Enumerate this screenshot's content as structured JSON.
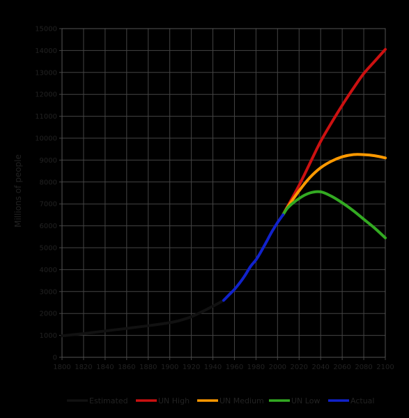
{
  "chart_data": {
    "type": "line",
    "title": "",
    "xlabel": "",
    "ylabel": "Millions of people",
    "xlim": [
      1800,
      2100
    ],
    "ylim": [
      0,
      15000
    ],
    "x_ticks": [
      1800,
      1820,
      1840,
      1860,
      1880,
      1900,
      1920,
      1940,
      1960,
      1980,
      2000,
      2020,
      2040,
      2060,
      2080,
      2100
    ],
    "y_ticks": [
      0,
      1000,
      2000,
      3000,
      4000,
      5000,
      6000,
      7000,
      8000,
      9000,
      10000,
      11000,
      12000,
      13000,
      14000,
      15000
    ],
    "grid": true,
    "legend_position": "bottom",
    "series": [
      {
        "name": "Estimated",
        "color": "#111111",
        "points": [
          [
            1800,
            980
          ],
          [
            1820,
            1080
          ],
          [
            1840,
            1200
          ],
          [
            1860,
            1320
          ],
          [
            1880,
            1440
          ],
          [
            1900,
            1580
          ],
          [
            1910,
            1690
          ],
          [
            1920,
            1850
          ],
          [
            1930,
            2080
          ],
          [
            1940,
            2330
          ],
          [
            1950,
            2600
          ]
        ]
      },
      {
        "name": "UN High",
        "color": "#cc1111",
        "points": [
          [
            2005,
            6500
          ],
          [
            2010,
            6950
          ],
          [
            2020,
            7850
          ],
          [
            2030,
            8850
          ],
          [
            2040,
            9850
          ],
          [
            2050,
            10700
          ],
          [
            2060,
            11500
          ],
          [
            2070,
            12250
          ],
          [
            2080,
            12950
          ],
          [
            2090,
            13500
          ],
          [
            2100,
            14050
          ]
        ]
      },
      {
        "name": "UN Medium",
        "color": "#ff9900",
        "points": [
          [
            2005,
            6500
          ],
          [
            2010,
            6900
          ],
          [
            2020,
            7600
          ],
          [
            2030,
            8200
          ],
          [
            2040,
            8650
          ],
          [
            2050,
            8950
          ],
          [
            2060,
            9150
          ],
          [
            2070,
            9250
          ],
          [
            2080,
            9250
          ],
          [
            2090,
            9200
          ],
          [
            2100,
            9100
          ]
        ]
      },
      {
        "name": "UN Low",
        "color": "#33aa22",
        "points": [
          [
            2005,
            6500
          ],
          [
            2010,
            6850
          ],
          [
            2020,
            7250
          ],
          [
            2030,
            7500
          ],
          [
            2040,
            7550
          ],
          [
            2050,
            7350
          ],
          [
            2060,
            7050
          ],
          [
            2070,
            6700
          ],
          [
            2080,
            6300
          ],
          [
            2090,
            5900
          ],
          [
            2100,
            5450
          ]
        ]
      },
      {
        "name": "Actual",
        "color": "#1122cc",
        "points": [
          [
            1950,
            2600
          ],
          [
            1955,
            2850
          ],
          [
            1960,
            3100
          ],
          [
            1965,
            3400
          ],
          [
            1970,
            3750
          ],
          [
            1975,
            4150
          ],
          [
            1980,
            4450
          ],
          [
            1985,
            4850
          ],
          [
            1990,
            5300
          ],
          [
            1995,
            5750
          ],
          [
            2000,
            6150
          ],
          [
            2005,
            6500
          ]
        ]
      }
    ]
  }
}
